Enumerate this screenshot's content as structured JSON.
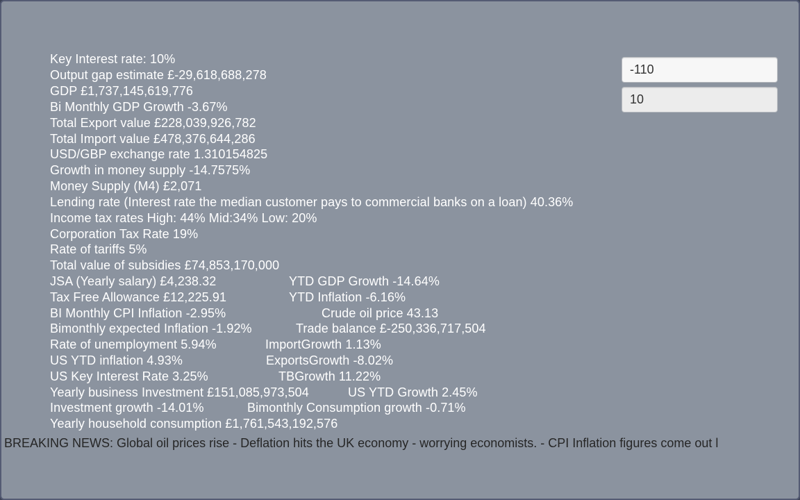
{
  "inputs": {
    "first_value": "-110",
    "second_value": "10"
  },
  "stats": {
    "key_interest_rate": "Key Interest rate: 10%",
    "output_gap": "Output gap estimate £-29,618,688,278",
    "gdp": "GDP £1,737,145,619,776",
    "bimonthly_gdp_growth": "Bi Monthly GDP Growth -3.67%",
    "total_export_value": "Total Export value £228,039,926,782",
    "total_import_value": "Total Import value £478,376,644,286",
    "usd_gbp_rate": "USD/GBP exchange rate 1.310154825",
    "money_supply_growth": "Growth in money supply -14.7575%",
    "money_supply_m4": "Money Supply (M4) £2,071",
    "lending_rate": "Lending rate (Interest rate the median customer pays to commercial banks on a loan) 40.36%",
    "income_tax_rates": "Income tax rates High: 44% Mid:34% Low: 20%",
    "corporation_tax": "Corporation Tax Rate 19%",
    "tariff_rate": "Rate of tariffs 5%",
    "subsidies": "Total value of subsidies £74,853,170,000",
    "jsa": "JSA (Yearly salary) £4,238.32",
    "ytd_gdp_growth": "YTD GDP Growth -14.64%",
    "tax_free_allowance": "Tax Free Allowance £12,225.91",
    "ytd_inflation": "YTD Inflation -6.16%",
    "bimonthly_cpi": "BI Monthly CPI Inflation -2.95%",
    "crude_oil_price": "Crude oil price 43.13",
    "expected_inflation": "Bimonthly expected Inflation -1.92%",
    "trade_balance": "Trade balance £-250,336,717,504",
    "unemployment": "Rate of unemployment 5.94%",
    "import_growth": "ImportGrowth 1.13%",
    "us_ytd_inflation": "US YTD inflation 4.93%",
    "exports_growth": "ExportsGrowth -8.02%",
    "us_key_interest": "US Key Interest Rate 3.25%",
    "tb_growth": "TBGrowth 11.22%",
    "business_investment": "Yearly business Investment £151,085,973,504",
    "us_ytd_growth": "US YTD Growth 2.45%",
    "investment_growth": "Investment growth -14.01%",
    "consumption_growth": "Bimonthly Consumption growth -0.71%",
    "household_consumption": "Yearly household consumption £1,761,543,192,576"
  },
  "ticker": {
    "text": "BREAKING NEWS: Global oil prices rise - Deflation hits the UK economy - worrying economists. - CPI Inflation figures come out l"
  }
}
